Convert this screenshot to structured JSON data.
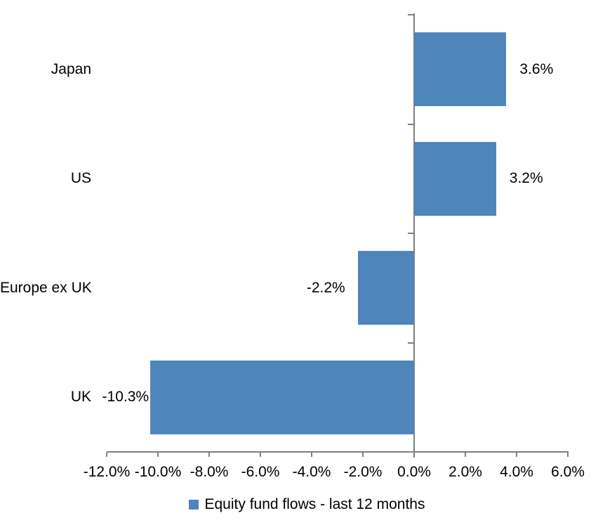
{
  "chart_data": {
    "type": "bar",
    "orientation": "horizontal",
    "title": "",
    "categories": [
      "Japan",
      "US",
      "Europe ex UK",
      "UK"
    ],
    "values": [
      3.6,
      3.2,
      -2.2,
      -10.3
    ],
    "data_labels": [
      "3.6%",
      "3.2%",
      "-2.2%",
      "-10.3%"
    ],
    "series_name": "Equity fund flows - last 12 months",
    "x_tick_labels": [
      "-12.0%",
      "-10.0%",
      "-8.0%",
      "-6.0%",
      "-4.0%",
      "-2.0%",
      "0.0%",
      "2.0%",
      "4.0%",
      "6.0%"
    ],
    "xlim": [
      -12,
      6
    ],
    "x_tick_step": 2,
    "grid": false,
    "legend_position": "bottom",
    "colors": {
      "bar": "#4e86bc",
      "axis": "#7f7f7f",
      "text": "#000000",
      "background": "#ffffff"
    }
  }
}
